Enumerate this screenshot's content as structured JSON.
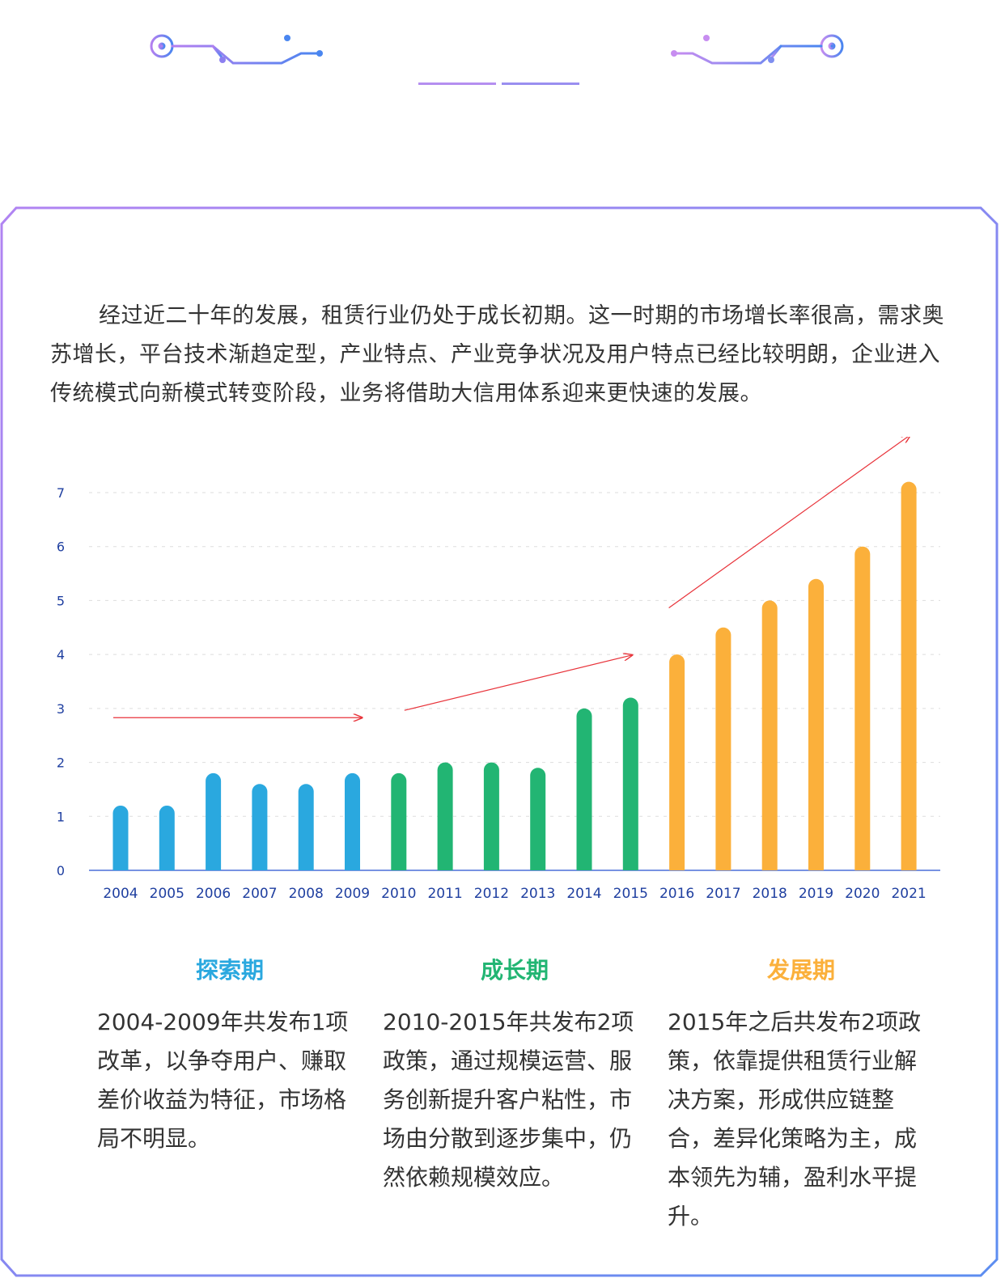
{
  "intro": "经过近二十年的发展，租赁行业仍处于成长初期。这一时期的市场增长率很高，需求奥苏增长，平台技术渐趋定型，产业特点、产业竞争状况及用户特点已经比较明朗，企业进入传统模式向新模式转变阶段，业务将借助大信用体系迎来更快速的发展。",
  "colors": {
    "explore": "#2aa8df",
    "growth": "#22b573",
    "develop": "#fbb03b",
    "axis": "#4a6fd8",
    "arrow": "#e8333a",
    "frame": "#8a7af0"
  },
  "phases": [
    {
      "title": "探索期",
      "color": "#2aa8df",
      "text": "2004-2009年共发布1项改革，以争夺用户、赚取差价收益为特征，市场格局不明显。"
    },
    {
      "title": "成长期",
      "color": "#22b573",
      "text": "2010-2015年共发布2项政策，通过规模运营、服务创新提升客户粘性，市场由分散到逐步集中，仍然依赖规模效应。"
    },
    {
      "title": "发展期",
      "color": "#fbb03b",
      "text": "2015年之后共发布2项政策，依靠提供租赁行业解决方案，形成供应链整合，差异化策略为主，成本领先为辅，盈利水平提升。"
    }
  ],
  "chart_data": {
    "type": "bar",
    "categories": [
      "2004",
      "2005",
      "2006",
      "2007",
      "2008",
      "2009",
      "2010",
      "2011",
      "2012",
      "2013",
      "2014",
      "2015",
      "2016",
      "2017",
      "2018",
      "2019",
      "2020",
      "2021"
    ],
    "values": [
      1.2,
      1.2,
      1.8,
      1.6,
      1.6,
      1.8,
      1.8,
      2.0,
      2.0,
      1.9,
      3.0,
      3.2,
      4.0,
      4.5,
      5.0,
      5.4,
      6.0,
      7.2
    ],
    "bar_colors": [
      "#2aa8df",
      "#2aa8df",
      "#2aa8df",
      "#2aa8df",
      "#2aa8df",
      "#2aa8df",
      "#22b573",
      "#22b573",
      "#22b573",
      "#22b573",
      "#22b573",
      "#22b573",
      "#fbb03b",
      "#fbb03b",
      "#fbb03b",
      "#fbb03b",
      "#fbb03b",
      "#fbb03b"
    ],
    "yticks": [
      0,
      1,
      2,
      3,
      4,
      5,
      6,
      7
    ],
    "ylim": [
      0,
      7
    ],
    "grid": true,
    "trend_arrows": [
      {
        "from": [
          "2004",
          2.5
        ],
        "to": [
          "2009",
          2.5
        ]
      },
      {
        "from": [
          "2010",
          2.5
        ],
        "to": [
          "2015",
          3.9
        ]
      },
      {
        "from": [
          "2016",
          4.4
        ],
        "to": [
          "2021",
          7.8
        ]
      }
    ]
  }
}
